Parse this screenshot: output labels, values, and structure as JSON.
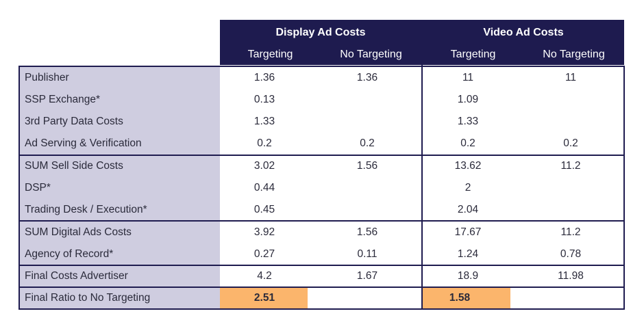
{
  "header": {
    "display_title": "Display Ad Costs",
    "video_title": "Video Ad Costs",
    "display_targeting": "Targeting",
    "display_no_targeting": "No Targeting",
    "video_targeting": "Targeting",
    "video_no_targeting": "No Targeting"
  },
  "rows": [
    {
      "label": "Publisher",
      "d_t": "1.36",
      "d_nt": "1.36",
      "v_t": "11",
      "v_nt": "11"
    },
    {
      "label": "SSP Exchange*",
      "d_t": "0.13",
      "d_nt": "",
      "v_t": "1.09",
      "v_nt": ""
    },
    {
      "label": "3rd Party Data Costs",
      "d_t": "1.33",
      "d_nt": "",
      "v_t": "1.33",
      "v_nt": ""
    },
    {
      "label": "Ad Serving & Verification",
      "d_t": "0.2",
      "d_nt": "0.2",
      "v_t": "0.2",
      "v_nt": "0.2"
    },
    {
      "label": "SUM Sell Side Costs",
      "d_t": "3.02",
      "d_nt": "1.56",
      "v_t": "13.62",
      "v_nt": "11.2"
    },
    {
      "label": "DSP*",
      "d_t": "0.44",
      "d_nt": "",
      "v_t": "2",
      "v_nt": ""
    },
    {
      "label": "Trading Desk / Execution*",
      "d_t": "0.45",
      "d_nt": "",
      "v_t": "2.04",
      "v_nt": ""
    },
    {
      "label": "SUM Digital Ads Costs",
      "d_t": "3.92",
      "d_nt": "1.56",
      "v_t": "17.67",
      "v_nt": "11.2"
    },
    {
      "label": "Agency of Record*",
      "d_t": "0.27",
      "d_nt": "0.11",
      "v_t": "1.24",
      "v_nt": "0.78"
    },
    {
      "label": "Final Costs Advertiser",
      "d_t": "4.2",
      "d_nt": "1.67",
      "v_t": "18.9",
      "v_nt": "11.98"
    },
    {
      "label": "Final Ratio to No Targeting",
      "d_t": "2.51",
      "d_nt": "",
      "v_t": "1.58",
      "v_nt": ""
    }
  ],
  "colors": {
    "header_bg": "#1e1b4f",
    "label_bg": "#cfcde0",
    "highlight": "#fbb56c"
  }
}
